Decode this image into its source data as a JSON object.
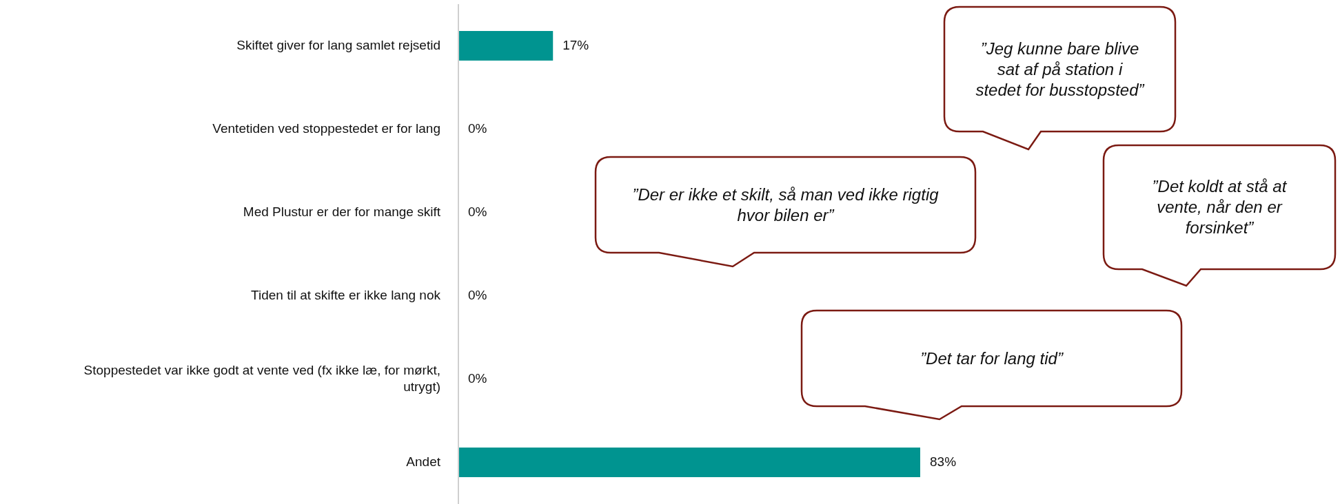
{
  "chart_data": {
    "type": "bar",
    "orientation": "horizontal",
    "categories": [
      "Skiftet giver for lang samlet rejsetid",
      "Ventetiden ved stoppestedet er for lang",
      "Med Plustur er der for mange skift",
      "Tiden til at skifte er ikke lang nok",
      "Stoppestedet var ikke godt at vente ved (fx ikke læ, for mørkt, utrygt)",
      "Andet"
    ],
    "values": [
      17,
      0,
      0,
      0,
      0,
      83
    ],
    "value_labels": [
      "17%",
      "0%",
      "0%",
      "0%",
      "0%",
      "83%"
    ],
    "color": "#009490",
    "tick_labels": "y",
    "annotations": [
      "”Jeg kunne bare blive sat af på station i stedet for busstopsted”",
      "”Der er ikke et skilt, så man ved ikke rigtig hvor bilen er”",
      "”Det koldt at stå at vente, når den er forsinket”",
      "”Det tar for lang tid”"
    ]
  }
}
